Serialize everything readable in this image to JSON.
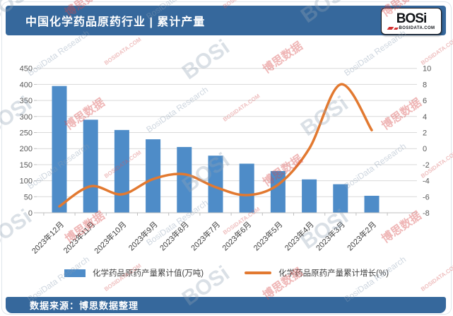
{
  "header": {
    "title": "中国化学药品原药行业 | 累计产量",
    "logo_text": "BOSi",
    "logo_sub": "BOSIDATA.COM"
  },
  "footer": {
    "source": "数据来源：博思数据整理"
  },
  "watermark": {
    "items": [
      "BOSi",
      "博思数据",
      "BosiData Research",
      "BOSIDATA.COM"
    ]
  },
  "colors": {
    "header_bg": "#36689C",
    "bar": "#4E8CC8",
    "line": "#E27930",
    "grid": "#D9D9D9",
    "axis": "#BFBFBF",
    "tick_text": "#595959",
    "category_text": "#404040"
  },
  "chart_data": {
    "type": "bar",
    "subtype": "combo-bar-line-dual-axis",
    "title": "中国化学药品原药行业 | 累计产量",
    "categories": [
      "2023年12月",
      "2023年11月",
      "2023年10月",
      "2023年9月",
      "2023年8月",
      "2023年7月",
      "2023年6月",
      "2023年5月",
      "2023年4月",
      "2023年3月",
      "2023年2月"
    ],
    "series": [
      {
        "name": "化学药品原药产量累计值(万吨)",
        "type": "bar",
        "axis": "left",
        "color": "#4E8CC8",
        "values": [
          395,
          290,
          258,
          229,
          205,
          178,
          153,
          130,
          104,
          89,
          53
        ]
      },
      {
        "name": "化学药品原药产量累计增长(%)",
        "type": "line",
        "axis": "right",
        "color": "#E27930",
        "values": [
          -7.2,
          -4.7,
          -5.7,
          -3.8,
          -3.2,
          -4.8,
          -5.8,
          -4.5,
          0.0,
          8.0,
          2.3
        ]
      }
    ],
    "left_axis": {
      "min": 0,
      "max": 450,
      "step": 50,
      "ticks": [
        450,
        400,
        350,
        300,
        250,
        200,
        150,
        100,
        50,
        0
      ]
    },
    "right_axis": {
      "min": -8,
      "max": 10,
      "step": 2,
      "ticks": [
        10,
        8,
        6,
        4,
        2,
        0,
        -2,
        -4,
        -6,
        -8
      ]
    },
    "grid": true,
    "legend_position": "bottom",
    "x_label_rotation": -45
  }
}
